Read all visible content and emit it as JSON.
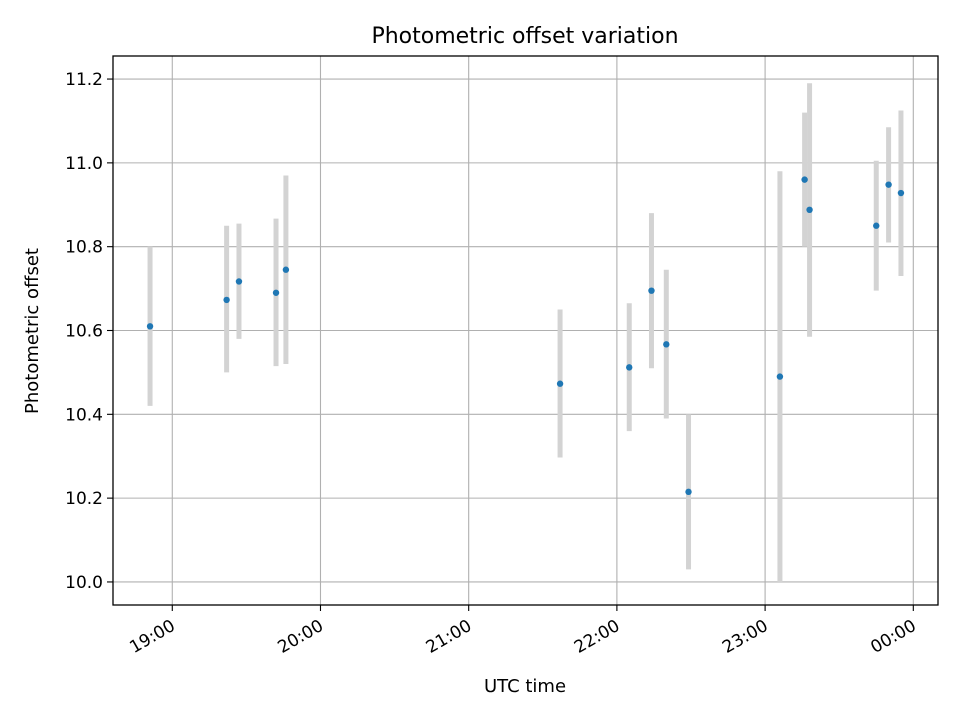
{
  "chart_data": {
    "type": "scatter",
    "title": "Photometric offset variation",
    "xlabel": "UTC time",
    "ylabel": "Photometric offset",
    "xlim": [
      "18:36",
      "00:10"
    ],
    "ylim": [
      9.945,
      11.255
    ],
    "grid": true,
    "x_ticks": [
      "19:00",
      "20:00",
      "21:00",
      "22:00",
      "23:00",
      "00:00"
    ],
    "y_ticks": [
      "10.0",
      "10.2",
      "10.4",
      "10.6",
      "10.8",
      "11.0",
      "11.2"
    ],
    "y_tick_values": [
      10.0,
      10.2,
      10.4,
      10.6,
      10.8,
      11.0,
      11.2
    ],
    "marker_color": "#1f77b4",
    "errorbar_color": "#d3d3d3",
    "points": [
      {
        "time": "18:51",
        "y": 10.61,
        "err_low": 10.42,
        "err_high": 10.8
      },
      {
        "time": "19:22",
        "y": 10.673,
        "err_low": 10.5,
        "err_high": 10.85
      },
      {
        "time": "19:27",
        "y": 10.717,
        "err_low": 10.58,
        "err_high": 10.855
      },
      {
        "time": "19:42",
        "y": 10.69,
        "err_low": 10.515,
        "err_high": 10.867
      },
      {
        "time": "19:46",
        "y": 10.745,
        "err_low": 10.52,
        "err_high": 10.97
      },
      {
        "time": "21:37",
        "y": 10.473,
        "err_low": 10.297,
        "err_high": 10.65
      },
      {
        "time": "22:05",
        "y": 10.512,
        "err_low": 10.36,
        "err_high": 10.665
      },
      {
        "time": "22:14",
        "y": 10.695,
        "err_low": 10.51,
        "err_high": 10.88
      },
      {
        "time": "22:20",
        "y": 10.567,
        "err_low": 10.39,
        "err_high": 10.745
      },
      {
        "time": "22:29",
        "y": 10.215,
        "err_low": 10.03,
        "err_high": 10.4
      },
      {
        "time": "23:06",
        "y": 10.49,
        "err_low": 10.0,
        "err_high": 10.98
      },
      {
        "time": "23:16",
        "y": 10.96,
        "err_low": 10.8,
        "err_high": 11.12
      },
      {
        "time": "23:18",
        "y": 10.888,
        "err_low": 10.585,
        "err_high": 11.19
      },
      {
        "time": "23:45",
        "y": 10.85,
        "err_low": 10.695,
        "err_high": 11.005
      },
      {
        "time": "23:50",
        "y": 10.948,
        "err_low": 10.81,
        "err_high": 11.085
      },
      {
        "time": "23:55",
        "y": 10.928,
        "err_low": 10.73,
        "err_high": 11.125
      }
    ]
  }
}
